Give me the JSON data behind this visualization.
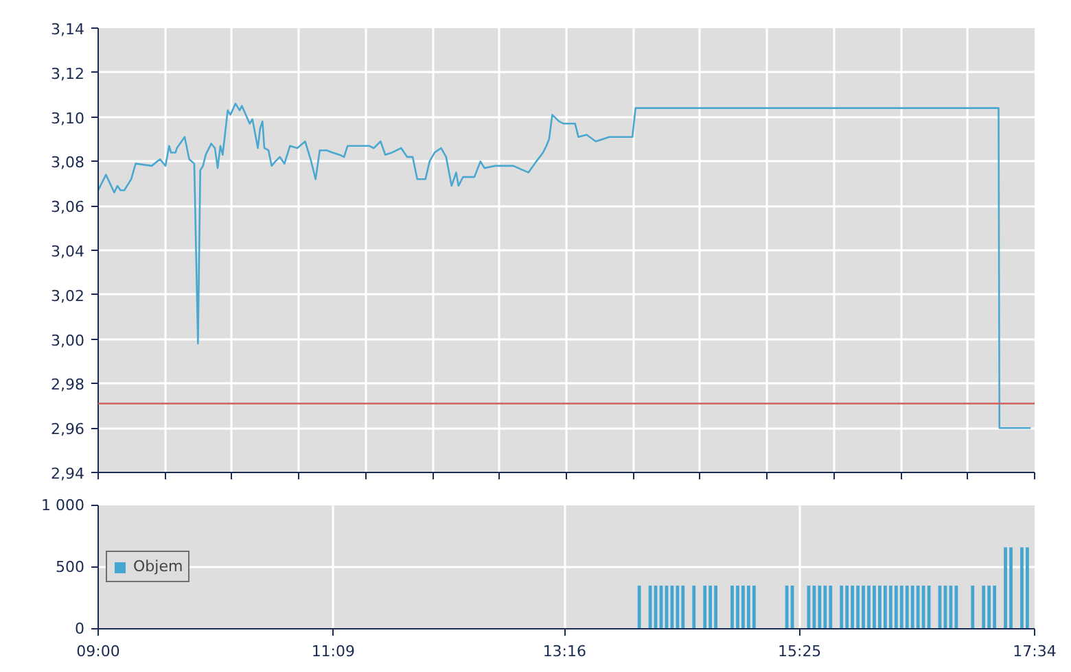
{
  "chart_data": [
    {
      "type": "line",
      "x": [
        9.0,
        9.071,
        9.147,
        9.176,
        9.205,
        9.239,
        9.302,
        9.343,
        9.49,
        9.565,
        9.616,
        9.649,
        9.666,
        9.708,
        9.72,
        9.791,
        9.833,
        9.879,
        9.913,
        9.934,
        9.959,
        9.984,
        10.034,
        10.068,
        10.093,
        10.118,
        10.139,
        10.185,
        10.21,
        10.256,
        10.294,
        10.315,
        10.386,
        10.411,
        10.461,
        10.482,
        10.503,
        10.52,
        10.558,
        10.587,
        10.621,
        10.662,
        10.704,
        10.755,
        10.822,
        10.893,
        10.943,
        10.989,
        11.027,
        11.09,
        11.144,
        11.207,
        11.249,
        11.282,
        11.479,
        11.521,
        11.584,
        11.626,
        11.688,
        11.772,
        11.827,
        11.877,
        11.919,
        11.994,
        12.032,
        12.078,
        12.137,
        12.183,
        12.233,
        12.275,
        12.296,
        12.338,
        12.442,
        12.497,
        12.534,
        12.631,
        12.798,
        12.936,
        13.008,
        13.07,
        13.1,
        13.125,
        13.154,
        13.217,
        13.259,
        13.363,
        13.393,
        13.468,
        13.552,
        13.677,
        13.887,
        13.916,
        17.237,
        17.245,
        17.53
      ],
      "series": [
        {
          "color": "#4aa8d0",
          "values": [
            3.067,
            3.074,
            3.066,
            3.069,
            3.067,
            3.067,
            3.072,
            3.079,
            3.078,
            3.081,
            3.078,
            3.087,
            3.084,
            3.084,
            3.086,
            3.091,
            3.081,
            3.079,
            2.998,
            3.076,
            3.078,
            3.083,
            3.088,
            3.086,
            3.077,
            3.087,
            3.083,
            3.103,
            3.101,
            3.106,
            3.103,
            3.105,
            3.097,
            3.099,
            3.086,
            3.095,
            3.098,
            3.086,
            3.085,
            3.078,
            3.08,
            3.082,
            3.079,
            3.087,
            3.086,
            3.089,
            3.081,
            3.072,
            3.085,
            3.085,
            3.084,
            3.083,
            3.082,
            3.087,
            3.087,
            3.086,
            3.089,
            3.083,
            3.084,
            3.086,
            3.082,
            3.082,
            3.072,
            3.072,
            3.08,
            3.084,
            3.086,
            3.082,
            3.069,
            3.075,
            3.069,
            3.073,
            3.073,
            3.08,
            3.077,
            3.078,
            3.078,
            3.075,
            3.08,
            3.084,
            3.087,
            3.09,
            3.101,
            3.098,
            3.097,
            3.097,
            3.091,
            3.092,
            3.089,
            3.091,
            3.091,
            3.104,
            3.104,
            2.96,
            2.96
          ]
        }
      ],
      "xlim": [
        9,
        17.5667
      ],
      "xticks": [
        {
          "value": 9,
          "label": null
        },
        {
          "value": 9.612,
          "label": null
        },
        {
          "value": 10.224,
          "label": null
        },
        {
          "value": 10.836,
          "label": null
        },
        {
          "value": 11.448,
          "label": null
        },
        {
          "value": 12.06,
          "label": null
        },
        {
          "value": 12.671,
          "label": null
        },
        {
          "value": 13.283,
          "label": null
        },
        {
          "value": 13.895,
          "label": null
        },
        {
          "value": 14.507,
          "label": null
        },
        {
          "value": 15.119,
          "label": null
        },
        {
          "value": 15.731,
          "label": null
        },
        {
          "value": 16.343,
          "label": null
        },
        {
          "value": 16.955,
          "label": null
        },
        {
          "value": 17.5667,
          "label": null
        }
      ],
      "ylim": [
        2.94,
        3.14
      ],
      "yticks": [
        {
          "value": 2.94,
          "label": "2,94"
        },
        {
          "value": 2.96,
          "label": "2,96"
        },
        {
          "value": 2.98,
          "label": "2,98"
        },
        {
          "value": 3.0,
          "label": "3,00"
        },
        {
          "value": 3.02,
          "label": "3,02"
        },
        {
          "value": 3.04,
          "label": "3,04"
        },
        {
          "value": 3.06,
          "label": "3,06"
        },
        {
          "value": 3.08,
          "label": "3,08"
        },
        {
          "value": 3.1,
          "label": "3,10"
        },
        {
          "value": 3.12,
          "label": "3,12"
        },
        {
          "value": 3.14,
          "label": "3,14"
        }
      ],
      "ref_lines": [
        {
          "axis": "y",
          "value": 2.971,
          "color": "#d06060"
        }
      ],
      "tick_labels": "y",
      "grid": true,
      "legend": false
    },
    {
      "type": "bar",
      "x": [
        13.95,
        14.0,
        14.05,
        14.1,
        14.15,
        14.2,
        14.25,
        14.3,
        14.35,
        14.4,
        14.45,
        14.5,
        14.55,
        14.6,
        14.65,
        14.7,
        14.75,
        14.8,
        14.85,
        14.9,
        14.95,
        15.0,
        15.05,
        15.1,
        15.15,
        15.2,
        15.25,
        15.3,
        15.35,
        15.4,
        15.45,
        15.5,
        15.55,
        15.6,
        15.65,
        15.7,
        15.75,
        15.8,
        15.85,
        15.9,
        15.95,
        16.0,
        16.05,
        16.1,
        16.15,
        16.2,
        16.25,
        16.3,
        16.35,
        16.4,
        16.45,
        16.5,
        16.55,
        16.6,
        16.65,
        16.7,
        16.75,
        16.8,
        16.85,
        16.9,
        16.95,
        17.0,
        17.05,
        17.1,
        17.15,
        17.2,
        17.25,
        17.3,
        17.35,
        17.4,
        17.45,
        17.5
      ],
      "series": [
        {
          "name": "Objem",
          "color": "#44a6d0",
          "values": [
            350,
            null,
            350,
            350,
            350,
            350,
            350,
            350,
            350,
            null,
            350,
            null,
            350,
            350,
            350,
            null,
            null,
            350,
            350,
            350,
            350,
            350,
            null,
            null,
            null,
            null,
            null,
            350,
            350,
            null,
            null,
            350,
            350,
            350,
            350,
            350,
            null,
            350,
            350,
            350,
            350,
            350,
            350,
            350,
            350,
            350,
            350,
            350,
            350,
            350,
            350,
            350,
            350,
            350,
            null,
            350,
            350,
            350,
            350,
            null,
            null,
            350,
            null,
            350,
            350,
            350,
            null,
            660,
            660,
            null,
            660,
            660
          ]
        }
      ],
      "xlim": [
        9,
        17.5667
      ],
      "xticks": [
        {
          "value": 9,
          "label": "09:00"
        },
        {
          "value": 11.15,
          "label": "11:09"
        },
        {
          "value": 13.2667,
          "label": "13:16"
        },
        {
          "value": 15.4167,
          "label": "15:25"
        },
        {
          "value": 17.5667,
          "label": "17:34"
        }
      ],
      "ylim": [
        0,
        1000
      ],
      "yticks": [
        0,
        500,
        {
          "value": 1000,
          "label": "1 000"
        }
      ],
      "grid": true,
      "legend": "left"
    }
  ]
}
